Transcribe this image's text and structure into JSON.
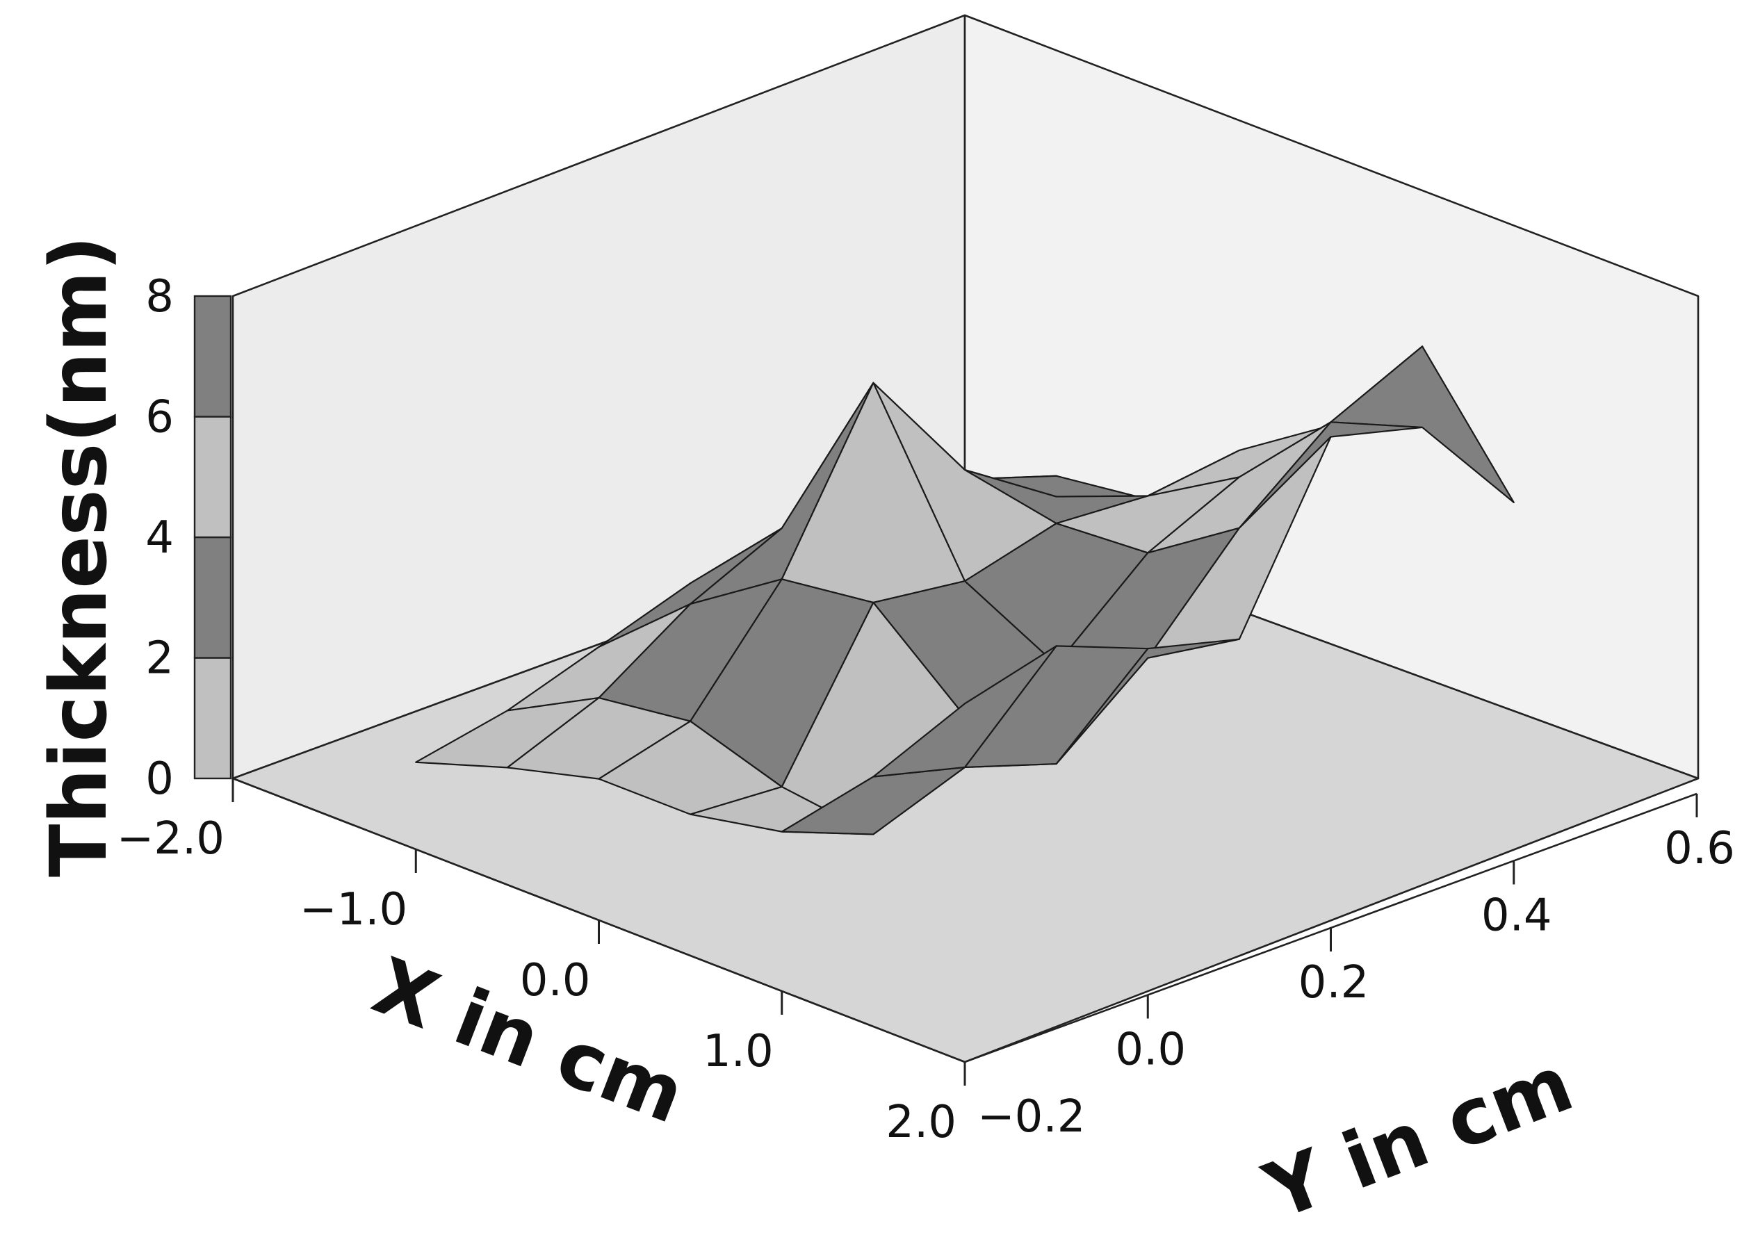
{
  "chart_data": {
    "type": "surface3d",
    "xlabel": "X in cm",
    "ylabel": "Y in cm",
    "zlabel": "Thickness(nm)",
    "xlim": [
      -2.0,
      2.0
    ],
    "ylim": [
      -0.2,
      0.6
    ],
    "zlim": [
      0,
      8
    ],
    "x_ticks": [
      "−2.0",
      "−1.0",
      "0.0",
      "1.0",
      "2.0"
    ],
    "y_ticks": [
      "−0.2",
      "0.0",
      "0.2",
      "0.4",
      "0.6"
    ],
    "z_ticks": [
      "0",
      "2",
      "4",
      "6",
      "8"
    ],
    "contour_bands": [
      {
        "from": 0,
        "to": 2,
        "color": "#c0c0c0"
      },
      {
        "from": 2,
        "to": 4,
        "color": "#808080"
      },
      {
        "from": 4,
        "to": 6,
        "color": "#c0c0c0"
      },
      {
        "from": 6,
        "to": 8,
        "color": "#808080"
      }
    ],
    "x": [
      -1.5,
      -1.0,
      -0.5,
      0.0,
      0.5,
      1.0,
      1.5
    ],
    "y": [
      -0.1,
      0.0,
      0.1,
      0.2,
      0.3,
      0.4,
      0.5
    ],
    "z": [
      [
        0.3,
        0.8,
        1.2,
        1.2,
        1.5,
        3.0,
        4.8
      ],
      [
        0.6,
        1.4,
        1.6,
        1.1,
        0.9,
        2.6,
        5.2
      ],
      [
        1.1,
        2.4,
        3.4,
        3.6,
        2.3,
        2.1,
        4.6
      ],
      [
        1.6,
        3.1,
        6.1,
        3.4,
        2.6,
        3.3,
        4.2
      ],
      [
        1.7,
        3.3,
        4.1,
        3.8,
        3.9,
        4.9,
        7.0
      ],
      [
        1.5,
        2.8,
        3.1,
        3.7,
        4.6,
        6.1,
        6.6
      ],
      [
        1.2,
        2.3,
        2.5,
        3.9,
        4.9,
        6.8,
        4.8
      ]
    ],
    "grid": true
  }
}
